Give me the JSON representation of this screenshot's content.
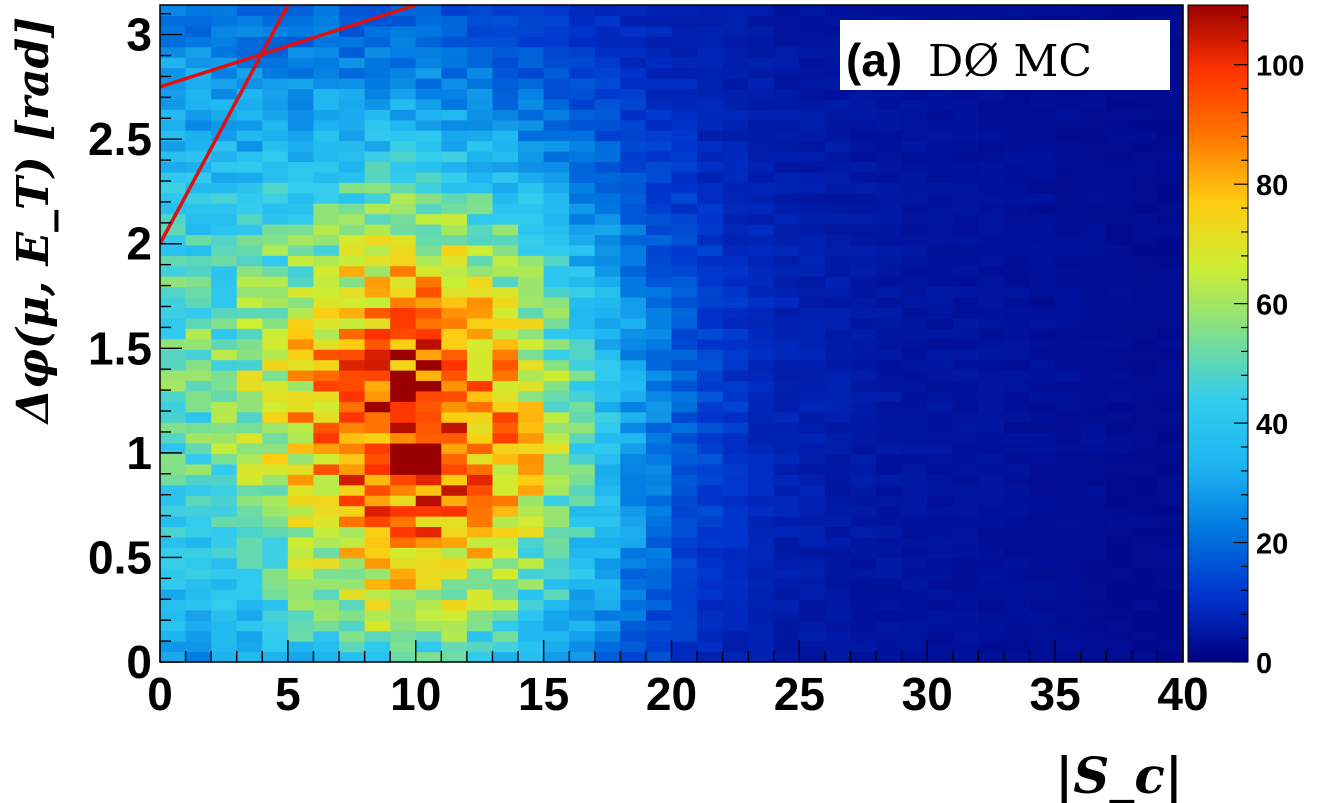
{
  "chart_data": {
    "type": "heatmap",
    "title": "",
    "panel_label": "(a)",
    "experiment_label": "DØ  MC",
    "xlabel": "|S_c|",
    "ylabel": "Δφ(μ, E_T) [rad]",
    "xlim": [
      0,
      40
    ],
    "ylim": [
      0,
      3.14159
    ],
    "x_ticks": [
      "0",
      "5",
      "10",
      "15",
      "20",
      "25",
      "30",
      "35",
      "40"
    ],
    "y_ticks": [
      "0",
      "0.5",
      "1",
      "1.5",
      "2",
      "2.5",
      "3"
    ],
    "z_ticks": [
      "0",
      "20",
      "40",
      "60",
      "80",
      "100"
    ],
    "zlim": [
      0,
      110
    ],
    "x_bins": 40,
    "y_bins": 63,
    "density_model": {
      "peak_center": [
        10.5,
        1.1
      ],
      "peak_value": 100,
      "sigma_x": 4.8,
      "sigma_y": 0.85,
      "tail_x": 10,
      "tail_y": 1.6,
      "background": 12,
      "noise": 0.22
    },
    "cut_lines": [
      {
        "x": [
          0,
          10
        ],
        "y": [
          2.75,
          3.14159
        ]
      },
      {
        "x": [
          0,
          5
        ],
        "y": [
          2.0,
          3.14159
        ]
      }
    ],
    "colormap": [
      "#000080",
      "#0033cc",
      "#0077e0",
      "#1fb5f0",
      "#33ccee",
      "#80e08c",
      "#ccee33",
      "#ffcc11",
      "#ff7700",
      "#ff3300",
      "#9a0000"
    ],
    "cut_line_color": "#e01010",
    "grid": false
  }
}
